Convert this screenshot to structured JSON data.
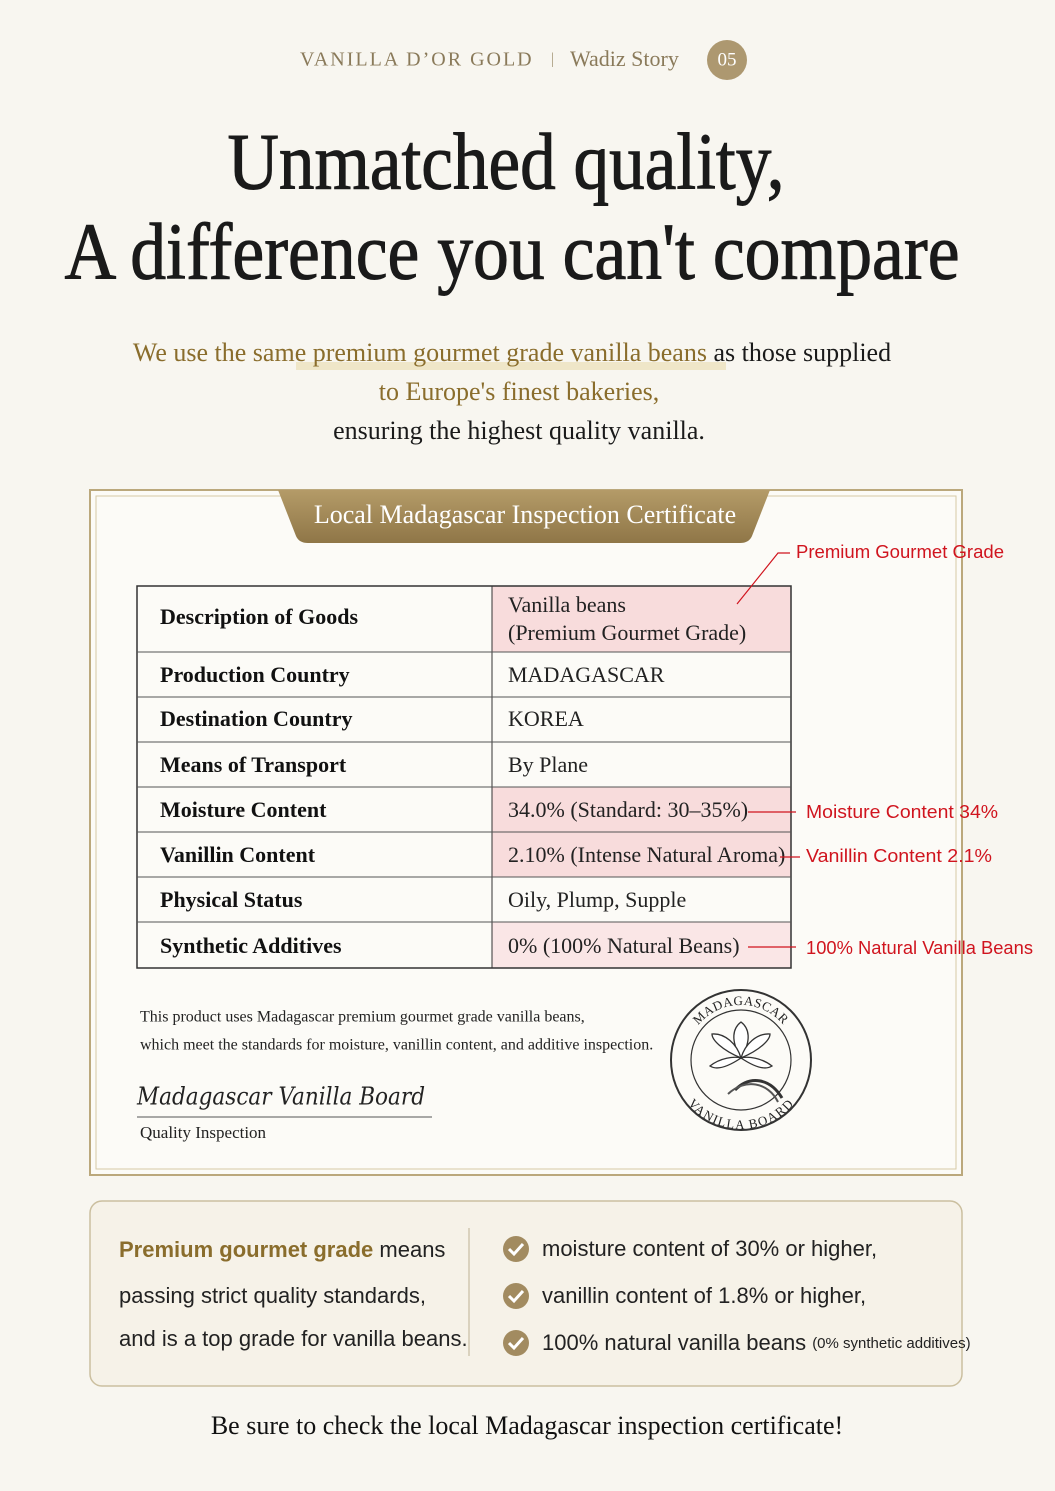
{
  "header": {
    "brand": "VANILLA D’OR GOLD",
    "separator": "|",
    "story": "Wadiz Story",
    "page": "05"
  },
  "title": {
    "line1": "Unmatched quality,",
    "line2": "A difference you can't compare"
  },
  "intro": {
    "highlight": "We use the same premium gourmet grade vanilla beans",
    "rest": " as those supplied",
    "line2": "to Europe's finest bakeries,",
    "line3": "ensuring the highest quality vanilla."
  },
  "certificate": {
    "title": "Local Madagascar Inspection Certificate",
    "rows": [
      {
        "label": "Description of Goods",
        "value": [
          "Vanilla beans",
          "(Premium Gourmet Grade)"
        ]
      },
      {
        "label": "Production Country",
        "value": [
          "MADAGASCAR"
        ]
      },
      {
        "label": "Destination Country",
        "value": [
          "KOREA"
        ]
      },
      {
        "label": "Means of Transport",
        "value": [
          "By Plane"
        ]
      },
      {
        "label": "Moisture Content",
        "value": [
          "34.0% (Standard: 30–35%)"
        ]
      },
      {
        "label": "Vanillin Content",
        "value": [
          "2.10% (Intense Natural Aroma)"
        ]
      },
      {
        "label": "Physical Status",
        "value": [
          "Oily, Plump, Supple"
        ]
      },
      {
        "label": "Synthetic Additives",
        "value": [
          "0% (100% Natural Beans)"
        ]
      }
    ],
    "annotations": [
      "Premium Gourmet Grade",
      "Moisture Content 34%",
      "Vanillin Content 2.1%",
      "100% Natural Vanilla Beans"
    ],
    "note": [
      "This product uses Madagascar premium gourmet grade vanilla beans,",
      "which meet the standards for moisture, vanillin content, and additive inspection."
    ],
    "signature": "Madagascar Vanilla Board",
    "signature_caption": "Quality Inspection",
    "seal": {
      "top": "MADAGASCAR",
      "bottom": "VANILLA BOARD"
    }
  },
  "summary": {
    "definition": {
      "highlight": "Premium gourmet grade",
      "rest": " means",
      "line2": "passing strict quality standards,",
      "line3": "and is a top grade for vanilla beans."
    },
    "criteria": [
      {
        "text": "moisture content of 30% or higher,"
      },
      {
        "text": "vanillin content of 1.8% or higher,"
      },
      {
        "text": "100% natural vanilla beans",
        "note": "(0% synthetic additives)"
      }
    ]
  },
  "footer": "Be sure to check the local Madagascar inspection certificate!"
}
